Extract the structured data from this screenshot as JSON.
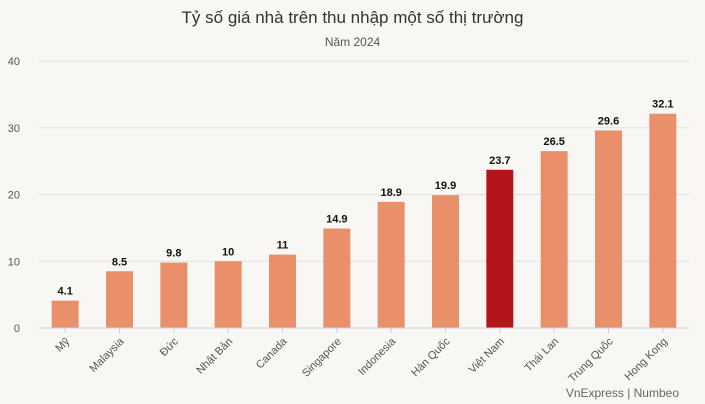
{
  "chart_data": {
    "type": "bar",
    "title": "Tỷ số giá nhà trên thu nhập một số thị trường",
    "subtitle": "Năm 2024",
    "source": "VnExpress | Numbeo",
    "categories": [
      "Mỹ",
      "Malaysia",
      "Đức",
      "Nhật Bản",
      "Canada",
      "Singapore",
      "Indonesia",
      "Hàn Quốc",
      "Việt Nam",
      "Thái Lan",
      "Trung Quốc",
      "Hong Kong"
    ],
    "values": [
      4.1,
      8.5,
      9.8,
      10,
      11,
      14.9,
      18.9,
      19.9,
      23.7,
      26.5,
      29.6,
      32.1
    ],
    "value_labels": [
      "4.1",
      "8.5",
      "9.8",
      "10",
      "11",
      "14.9",
      "18.9",
      "19.9",
      "23.7",
      "26.5",
      "29.6",
      "32.1"
    ],
    "highlight": "Việt Nam",
    "ylim": [
      0,
      40
    ],
    "yticks": [
      0,
      10,
      20,
      30,
      40
    ],
    "grid": true,
    "colors": {
      "bar": "#e9906b",
      "highlight": "#b3151a",
      "grid": "#e2e2e2",
      "axis": "#c9d3de"
    }
  }
}
